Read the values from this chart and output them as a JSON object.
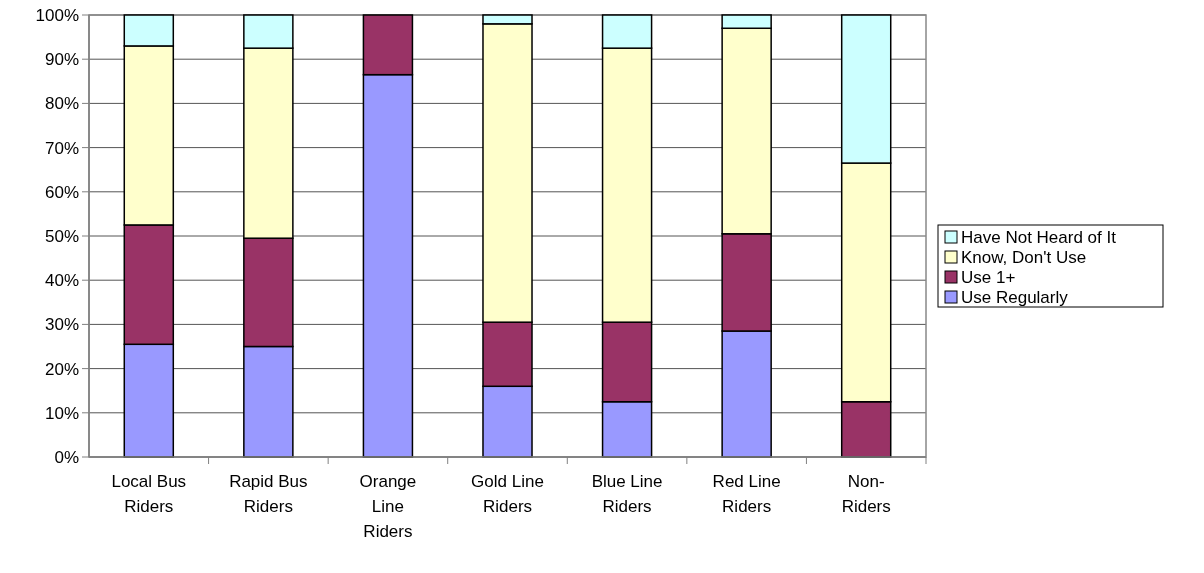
{
  "chart_data": {
    "type": "bar",
    "stacked": true,
    "categories": [
      "Local Bus Riders",
      "Rapid Bus Riders",
      "Orange Line Riders",
      "Gold Line Riders",
      "Blue Line Riders",
      "Red Line Riders",
      "Non-Riders"
    ],
    "series": [
      {
        "name": "Use Regularly",
        "color": "#9999ff",
        "values": [
          25.5,
          25,
          86.5,
          16,
          12.5,
          28.5,
          0
        ]
      },
      {
        "name": "Use 1+",
        "color": "#993366",
        "values": [
          27,
          24.5,
          13.5,
          14.5,
          18,
          22,
          12.5
        ]
      },
      {
        "name": "Know, Don't Use",
        "color": "#ffffcc",
        "values": [
          40.5,
          43,
          0,
          67.5,
          62,
          46.5,
          54
        ]
      },
      {
        "name": "Have Not Heard of It",
        "color": "#ccffff",
        "values": [
          7,
          7.5,
          0,
          2,
          7.5,
          3,
          33.5
        ]
      }
    ],
    "ylim": [
      0,
      100
    ],
    "yticks": [
      {
        "value": 0,
        "label": "0%"
      },
      {
        "value": 10,
        "label": "10%"
      },
      {
        "value": 20,
        "label": "20%"
      },
      {
        "value": 30,
        "label": "30%"
      },
      {
        "value": 40,
        "label": "40%"
      },
      {
        "value": 50,
        "label": "50%"
      },
      {
        "value": 60,
        "label": "60%"
      },
      {
        "value": 70,
        "label": "70%"
      },
      {
        "value": 80,
        "label": "80%"
      },
      {
        "value": 90,
        "label": "90%"
      },
      {
        "value": 100,
        "label": "100%"
      }
    ],
    "grid": "y",
    "legend": "right"
  }
}
